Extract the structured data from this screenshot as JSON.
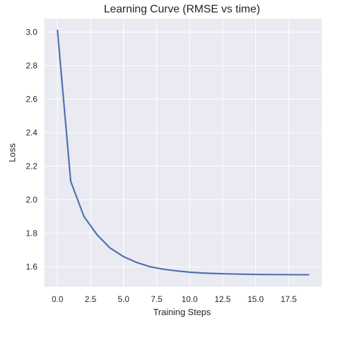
{
  "chart_data": {
    "type": "line",
    "title": "Learning Curve (RMSE vs time)",
    "xlabel": "Training Steps",
    "ylabel": "Loss",
    "xlim": [
      -1.0,
      20.0
    ],
    "ylim": [
      1.48,
      3.08
    ],
    "xticks": [
      0.0,
      2.5,
      5.0,
      7.5,
      10.0,
      12.5,
      15.0,
      17.5
    ],
    "xtick_labels": [
      "0.0",
      "2.5",
      "5.0",
      "7.5",
      "10.0",
      "12.5",
      "15.0",
      "17.5"
    ],
    "yticks": [
      1.6,
      1.8,
      2.0,
      2.2,
      2.4,
      2.6,
      2.8,
      3.0
    ],
    "ytick_labels": [
      "1.6",
      "1.8",
      "2.0",
      "2.2",
      "2.4",
      "2.6",
      "2.8",
      "3.0"
    ],
    "grid": true,
    "colors": {
      "background": "#eaeaf2",
      "grid": "#ffffff",
      "line": "#4c72b0"
    },
    "series": [
      {
        "x": [
          0,
          1,
          2,
          3,
          4,
          5,
          6,
          7,
          8,
          9,
          10,
          11,
          12,
          13,
          14,
          15,
          16,
          17,
          18,
          19
        ],
        "values": [
          3.01,
          2.11,
          1.9,
          1.79,
          1.71,
          1.66,
          1.625,
          1.6,
          1.585,
          1.575,
          1.567,
          1.562,
          1.559,
          1.557,
          1.555,
          1.554,
          1.553,
          1.553,
          1.552,
          1.552
        ]
      }
    ]
  }
}
